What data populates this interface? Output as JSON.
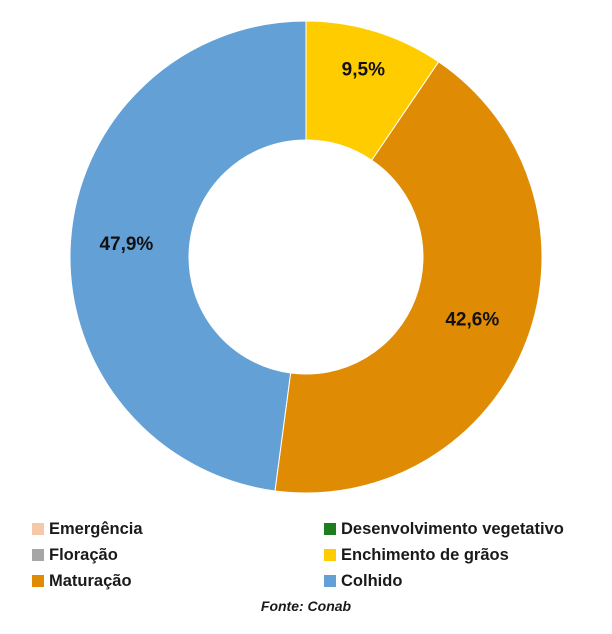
{
  "chart_data": {
    "type": "pie",
    "donut": true,
    "slices": [
      {
        "name": "Emergência",
        "value": 0,
        "label": "",
        "color": "#f4c8a8"
      },
      {
        "name": "Desenvolvimento vegetativo",
        "value": 0,
        "label": "",
        "color": "#1e7d1e"
      },
      {
        "name": "Floração",
        "value": 0,
        "label": "",
        "color": "#a6a6a6"
      },
      {
        "name": "Enchimento de grãos",
        "value": 9.5,
        "label": "9,5%",
        "color": "#ffcc00"
      },
      {
        "name": "Maturação",
        "value": 42.6,
        "label": "42,6%",
        "color": "#df8c04"
      },
      {
        "name": "Colhido",
        "value": 47.9,
        "label": "47,9%",
        "color": "#62a0d5"
      }
    ],
    "legend_position": "bottom",
    "source": "Fonte: Conab"
  }
}
